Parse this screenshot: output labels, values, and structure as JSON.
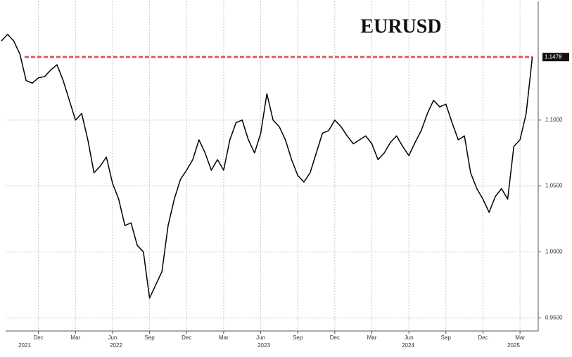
{
  "chart_data": {
    "type": "line",
    "title": "EURUSD",
    "categories": [
      null,
      null,
      null,
      null,
      null,
      null,
      "Dec",
      null,
      null,
      null,
      null,
      null,
      "Mar",
      null,
      null,
      null,
      null,
      null,
      "Jun",
      null,
      null,
      null,
      null,
      null,
      "Sep",
      null,
      null,
      null,
      null,
      null,
      "Dec",
      null,
      null,
      null,
      null,
      null,
      "Mar",
      null,
      null,
      null,
      null,
      null,
      "Jun",
      null,
      null,
      null,
      null,
      null,
      "Sep",
      null,
      null,
      null,
      null,
      null,
      "Dec",
      null,
      null,
      null,
      null,
      null,
      "Mar",
      null,
      null,
      null,
      null,
      null,
      "Jun",
      null,
      null,
      null,
      null,
      null,
      "Sep",
      null,
      null,
      null,
      null,
      null,
      "Dec",
      null,
      null,
      null,
      null,
      null,
      "Mar",
      null,
      null
    ],
    "x_group_labels": [
      "2021",
      "2022",
      "2023",
      "2024",
      "2025"
    ],
    "values": [
      1.16,
      1.165,
      1.16,
      1.15,
      1.13,
      1.128,
      1.132,
      1.133,
      1.138,
      1.142,
      1.13,
      1.115,
      1.1,
      1.105,
      1.085,
      1.06,
      1.065,
      1.072,
      1.052,
      1.04,
      1.02,
      1.022,
      1.005,
      1.0,
      0.965,
      0.975,
      0.985,
      1.02,
      1.04,
      1.055,
      1.062,
      1.07,
      1.085,
      1.075,
      1.062,
      1.07,
      1.062,
      1.085,
      1.098,
      1.1,
      1.085,
      1.075,
      1.09,
      1.12,
      1.1,
      1.095,
      1.085,
      1.07,
      1.058,
      1.053,
      1.06,
      1.075,
      1.09,
      1.092,
      1.1,
      1.095,
      1.088,
      1.082,
      1.085,
      1.088,
      1.082,
      1.07,
      1.075,
      1.083,
      1.088,
      1.08,
      1.073,
      1.083,
      1.092,
      1.105,
      1.115,
      1.11,
      1.112,
      1.098,
      1.085,
      1.088,
      1.06,
      1.048,
      1.04,
      1.03,
      1.042,
      1.048,
      1.04,
      1.08,
      1.085,
      1.105,
      1.148
    ],
    "color": "#000000",
    "ylim": [
      0.94,
      1.19
    ],
    "yticks": [
      {
        "value": 0.95,
        "label": "0.9500"
      },
      {
        "value": 1.0,
        "label": "1.0000"
      },
      {
        "value": 1.05,
        "label": "1.0500"
      },
      {
        "value": 1.1,
        "label": "1.1000"
      }
    ],
    "reference_line": {
      "value": 1.1478,
      "label": "1.1478",
      "color": "#e05a5a"
    },
    "grid": true
  }
}
